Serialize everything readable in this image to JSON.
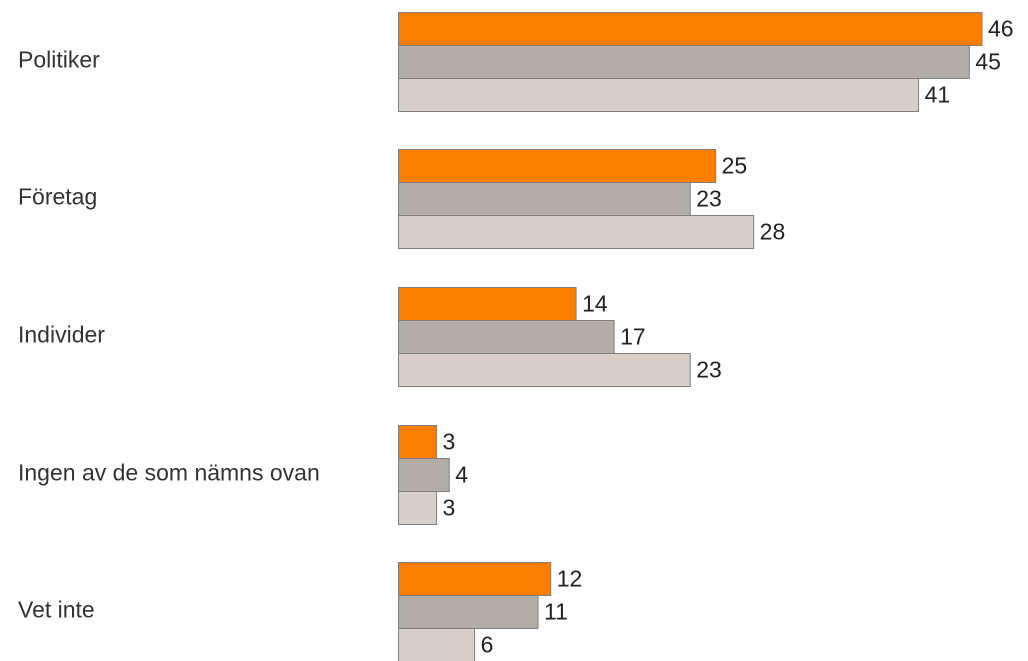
{
  "colors": {
    "series": [
      "#fb7e00",
      "#b4aca7",
      "#d8cec7"
    ],
    "bar_stroke": "#7f7f7f",
    "label_text": "#333333"
  },
  "chart_data": {
    "type": "bar",
    "orientation": "horizontal",
    "title": "",
    "xlabel": "",
    "ylabel": "",
    "grid": false,
    "legend": "none",
    "xlim": [
      0,
      46
    ],
    "categories": [
      "Politiker",
      "Företag",
      "Individer",
      "Ingen av de som nämns ovan",
      "Vet inte"
    ],
    "series": [
      {
        "values": [
          46,
          25,
          14,
          3,
          12
        ]
      },
      {
        "values": [
          45,
          23,
          17,
          4,
          11
        ]
      },
      {
        "values": [
          41,
          28,
          23,
          3,
          6
        ]
      }
    ]
  }
}
